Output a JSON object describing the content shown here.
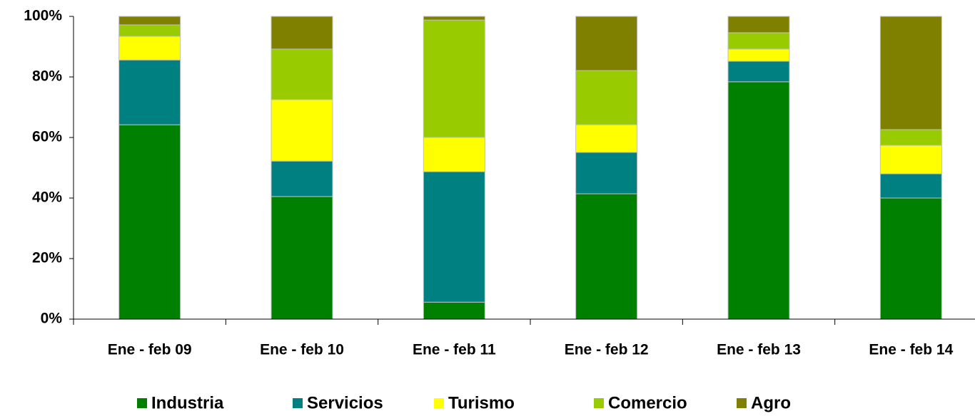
{
  "chart_data": {
    "type": "stacked_bar",
    "categories": [
      "Ene - feb 09",
      "Ene - feb 10",
      "Ene - feb 11",
      "Ene - feb 12",
      "Ene - feb 13",
      "Ene - feb 14"
    ],
    "series": [
      {
        "name": "Industria",
        "color": "#008000",
        "values": [
          64.2,
          40.5,
          5.6,
          41.4,
          78.4,
          40.0
        ]
      },
      {
        "name": "Servicios",
        "color": "#008080",
        "values": [
          21.4,
          11.7,
          43.1,
          13.7,
          6.8,
          8.0
        ]
      },
      {
        "name": "Turismo",
        "color": "#ffff00",
        "values": [
          7.8,
          20.3,
          11.3,
          9.1,
          4.0,
          9.4
        ]
      },
      {
        "name": "Comercio",
        "color": "#99cc00",
        "values": [
          3.8,
          16.7,
          38.8,
          17.9,
          5.4,
          5.2
        ]
      },
      {
        "name": "Agro",
        "color": "#808000",
        "values": [
          2.8,
          10.8,
          1.2,
          17.9,
          5.4,
          37.4
        ]
      }
    ],
    "ylim": [
      0,
      100
    ],
    "yticks": [
      {
        "value": 0,
        "label": "0%"
      },
      {
        "value": 20,
        "label": "20%"
      },
      {
        "value": 40,
        "label": "40%"
      },
      {
        "value": 60,
        "label": "60%"
      },
      {
        "value": 80,
        "label": "80%"
      },
      {
        "value": 100,
        "label": "100%"
      }
    ],
    "legend": "bottom"
  }
}
